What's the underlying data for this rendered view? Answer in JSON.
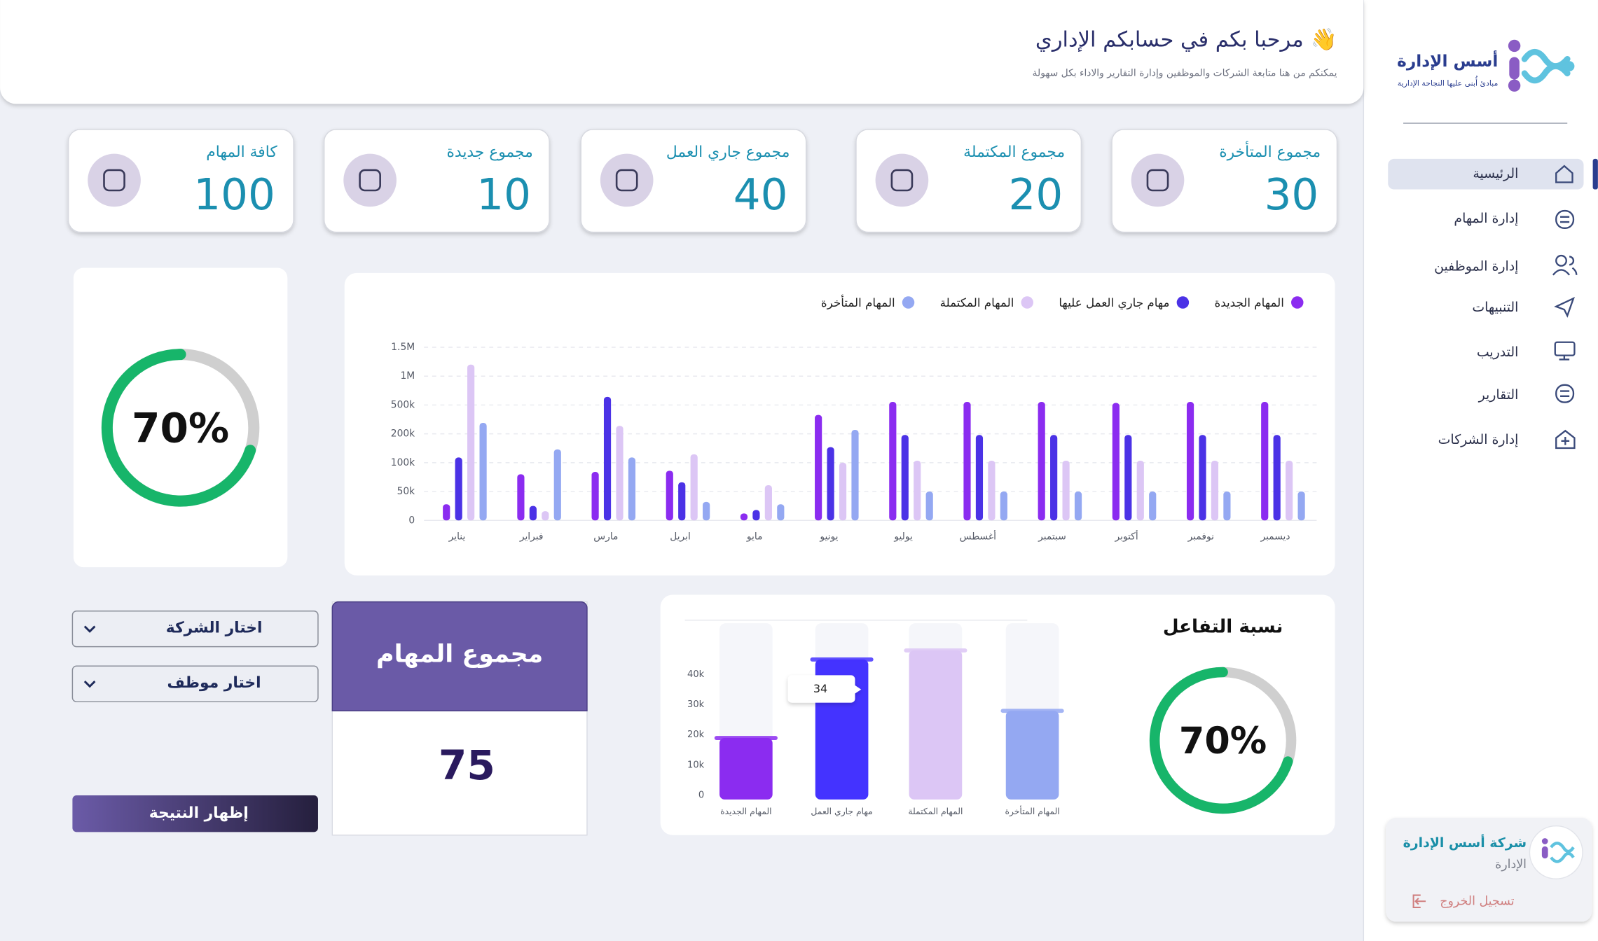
{
  "header": {
    "title": "مرحبا بكم في حسابكم الإداري 👋",
    "subtitle": "يمكنكم من هنا متابعة الشركات والموظفين وإدارة التقارير والاداء بكل سهولة"
  },
  "sidebar": {
    "brand": "أسس الإدارة",
    "tagline": "مبادئ أُبنى عليها النجاحة الإدارية",
    "nav": [
      "الرئيسية",
      "إدارة المهام",
      "إدارة الموظفين",
      "التنبيهات",
      "التدريب",
      "التقارير",
      "إدارة الشركات"
    ],
    "company": {
      "name": "شركة أسس الإدارة",
      "role": "الإدارة",
      "logout": "تسجيل الخروج"
    }
  },
  "stats": [
    {
      "title": "مجموع المتأخرة",
      "value": 30
    },
    {
      "title": "مجموع المكتملة",
      "value": 20
    },
    {
      "title": "مجموع جاري العمل",
      "value": 40
    },
    {
      "title": "مجموع جديدة",
      "value": 10
    },
    {
      "title": "كافة المهام",
      "value": 100
    }
  ],
  "progress": {
    "type": "donut",
    "values": [
      70
    ],
    "value_labels": [
      "70%"
    ],
    "color": "#17b56a"
  },
  "tasks_chart": {
    "type": "bar",
    "categories": [
      "يناير",
      "فبراير",
      "مارس",
      "ابريل",
      "مايو",
      "يونيو",
      "يوليو",
      "أغسطس",
      "سبتمبر",
      "أكتوبر",
      "نوفمبر",
      "ديسمبر"
    ],
    "series": [
      {
        "name": "المهام الجديدة",
        "color": "#8b2cf0",
        "values": [
          28000,
          80000,
          84000,
          86000,
          12000,
          397000,
          553000,
          553000,
          553000,
          535000,
          553000,
          553000
        ]
      },
      {
        "name": "مهام جاري العمل عليها",
        "color": "#4b32e6",
        "values": [
          118000,
          25000,
          640000,
          66000,
          18000,
          154000,
          196000,
          196000,
          196000,
          196000,
          196000,
          196000
        ]
      },
      {
        "name": "المهام المكتملة",
        "color": "#dcc6f5",
        "values": [
          1200000,
          16000,
          283000,
          129000,
          61000,
          100000,
          107000,
          107000,
          107000,
          107000,
          107000,
          107000
        ]
      },
      {
        "name": "المهام المتأخرة",
        "color": "#94a8f2",
        "values": [
          314000,
          146000,
          118000,
          32000,
          28000,
          241000,
          50000,
          50000,
          50000,
          50000,
          50000,
          50000
        ]
      }
    ],
    "ylim": [
      0,
      1500000
    ],
    "yticks": [
      0,
      {
        "value": 50000,
        "label": "50k"
      },
      {
        "value": 100000,
        "label": "100k"
      },
      {
        "value": 200000,
        "label": "200k"
      },
      {
        "value": 500000,
        "label": "500k"
      },
      {
        "value": 1000000,
        "label": "1M"
      },
      {
        "value": 1500000,
        "label": "1.5M"
      }
    ],
    "grid": true
  },
  "filters": {
    "company": "اختار الشركة",
    "employee": "اختار موظف",
    "submit": "إظهار النتيجة"
  },
  "total": {
    "title": "مجموع المهام",
    "value": 75
  },
  "engagement": {
    "title": "نسبة التفاعل",
    "type": "donut",
    "values": [
      70
    ],
    "value_labels": [
      "70%"
    ],
    "color": "#17b56a"
  },
  "engagement_chart": {
    "type": "bar",
    "categories": [
      "المهام الجديدة",
      "مهام جاري العمل",
      "المهام المكتملة",
      "المهام المتأخرة"
    ],
    "values": [
      19000,
      45000,
      48000,
      28000
    ],
    "colors": [
      "#8b2cf0",
      "#4433ff",
      "#dcc6f5",
      "#94a8f2"
    ],
    "ylim": [
      0,
      57000
    ],
    "yticks": [
      0,
      {
        "value": 10000,
        "label": "10k"
      },
      {
        "value": 20000,
        "label": "20k"
      },
      {
        "value": 30000,
        "label": "30k"
      },
      {
        "value": 40000,
        "label": "40k"
      }
    ],
    "tooltip": "34"
  }
}
